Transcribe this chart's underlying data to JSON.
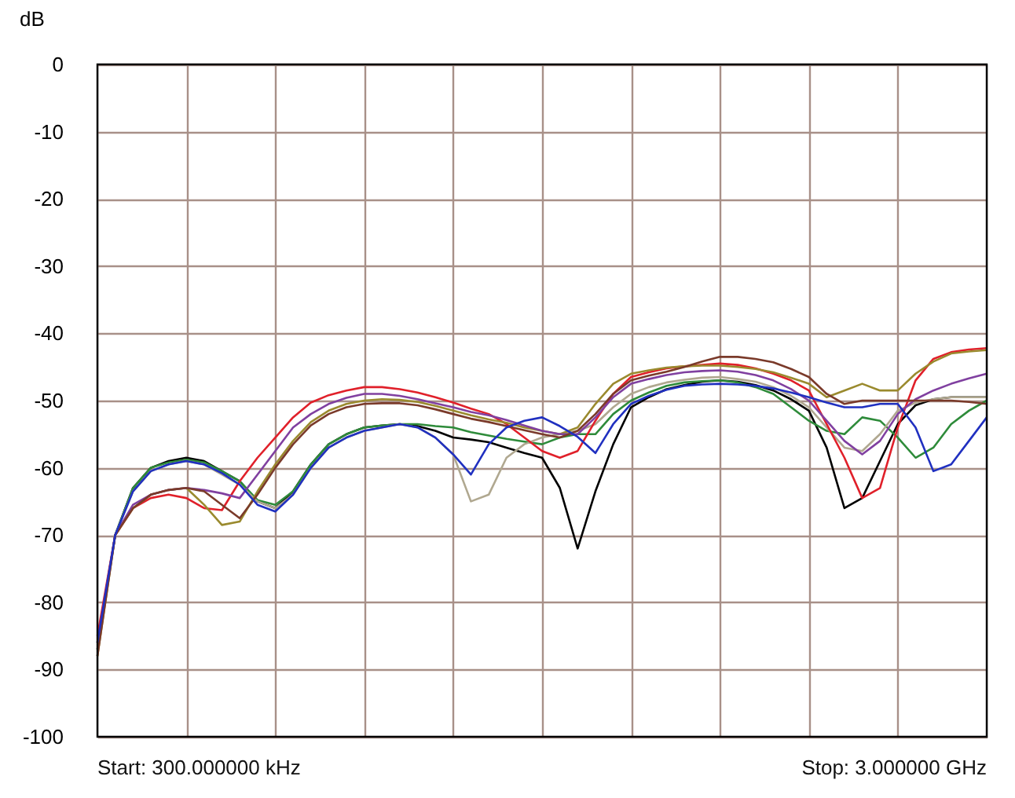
{
  "chart_data": {
    "type": "line",
    "ylabel": "dB",
    "categories": [
      null,
      null,
      null,
      null,
      null,
      null,
      null,
      null,
      null,
      null,
      null,
      null,
      null,
      null,
      null,
      null,
      null,
      null,
      null,
      null,
      null,
      null,
      null,
      null,
      null,
      null,
      null,
      null,
      null,
      null,
      null,
      null,
      null,
      null,
      null,
      null,
      null,
      null,
      null,
      null,
      null,
      null,
      null,
      null,
      null,
      null,
      null,
      null,
      null,
      null,
      null
    ],
    "series": [
      {
        "color": "#000000",
        "values": [
          -87,
          -70,
          -63,
          -60,
          -59,
          -58.5,
          -59,
          -60.5,
          -62,
          -65,
          -66,
          -63.5,
          -59.5,
          -56.5,
          -55,
          -54,
          -53.7,
          -53.5,
          -53.8,
          -54.5,
          -55.5,
          -55.8,
          -56.2,
          -57,
          -57.8,
          -58.5,
          -63,
          -72,
          -63.5,
          -56.5,
          -51,
          -49.5,
          -48.3,
          -47.7,
          -47.2,
          -47,
          -47.2,
          -47.7,
          -48.5,
          -49.8,
          -51.5,
          -57,
          -66,
          -64.5,
          -59,
          -53.5,
          -50.7,
          -49.8,
          -49.5,
          -49.5,
          -49.5
        ]
      },
      {
        "color": "#2e8b3a",
        "values": [
          -86,
          -70,
          -63,
          -60,
          -59.2,
          -58.8,
          -59.2,
          -60.5,
          -62,
          -64.8,
          -65.5,
          -63.5,
          -59.5,
          -56.5,
          -55,
          -54,
          -53.7,
          -53.5,
          -53.5,
          -53.8,
          -54,
          -54.7,
          -55.2,
          -55.7,
          -56.1,
          -56.5,
          -55.5,
          -55,
          -55,
          -52,
          -50,
          -48.8,
          -47.8,
          -47.3,
          -47.1,
          -47,
          -47.3,
          -48,
          -49,
          -51,
          -53,
          -54.5,
          -55,
          -52.5,
          -53,
          -55.5,
          -58.5,
          -57,
          -53.5,
          -51.5,
          -50
        ]
      },
      {
        "color": "#b0a890",
        "values": [
          -87,
          -70,
          -63.5,
          -60.5,
          -59.5,
          -59,
          -59.5,
          -61,
          -62.5,
          -65,
          -66,
          -64,
          -60,
          -57,
          -55.5,
          -54.5,
          -54,
          -53.5,
          -54,
          -55.5,
          -58,
          -65,
          -64,
          -58.5,
          -56.5,
          -55.5,
          -55,
          -54.5,
          -53.5,
          -51,
          -49,
          -48,
          -47.3,
          -46.9,
          -46.6,
          -46.5,
          -46.8,
          -47.2,
          -48,
          -49.3,
          -51,
          -54,
          -57,
          -57.5,
          -55,
          -51.5,
          -50.3,
          -49.8,
          -49.5,
          -49.5,
          -49.5
        ]
      },
      {
        "color": "#e0202a",
        "values": [
          -85,
          -70,
          -66,
          -64.5,
          -64,
          -64.5,
          -66,
          -66.3,
          -62,
          -58.5,
          -55.5,
          -52.5,
          -50.3,
          -49.2,
          -48.5,
          -48,
          -48,
          -48.3,
          -48.8,
          -49.5,
          -50.3,
          -51.2,
          -52,
          -53.5,
          -55.5,
          -57.5,
          -58.5,
          -57.5,
          -53,
          -49,
          -46.5,
          -45.8,
          -45.2,
          -44.9,
          -44.7,
          -44.5,
          -44.7,
          -45.2,
          -46,
          -47,
          -48.5,
          -53.5,
          -58.5,
          -64.5,
          -63,
          -54,
          -47,
          -43.8,
          -42.8,
          -42.4,
          -42.2
        ]
      },
      {
        "color": "#9a8a2e",
        "values": [
          -88,
          -70,
          -66,
          -64,
          -63.3,
          -63,
          -65.5,
          -68.5,
          -68,
          -63.5,
          -59.5,
          -56,
          -53.2,
          -51.5,
          -50.5,
          -50,
          -49.8,
          -49.9,
          -50.2,
          -50.8,
          -51.5,
          -52.2,
          -52.8,
          -53.3,
          -54,
          -54.5,
          -55,
          -54,
          -50.5,
          -47.5,
          -46,
          -45.5,
          -45.1,
          -44.9,
          -44.8,
          -44.8,
          -45,
          -45.3,
          -45.8,
          -46.6,
          -47.5,
          -49.5,
          -48.5,
          -47.5,
          -48.5,
          -48.5,
          -46,
          -44.2,
          -43,
          -42.7,
          -42.5
        ]
      },
      {
        "color": "#8040a0",
        "values": [
          -86,
          -70,
          -65.5,
          -64,
          -63.3,
          -63,
          -63.3,
          -63.8,
          -64.5,
          -61,
          -57.5,
          -54,
          -52,
          -50.5,
          -49.6,
          -49,
          -49,
          -49.3,
          -49.8,
          -50.4,
          -51,
          -51.7,
          -52.2,
          -52.9,
          -53.7,
          -54.5,
          -55,
          -55,
          -52.5,
          -49.5,
          -47.5,
          -46.8,
          -46.2,
          -45.8,
          -45.6,
          -45.5,
          -45.7,
          -46.2,
          -47,
          -48.3,
          -50,
          -53,
          -56,
          -58,
          -56,
          -52,
          -49.8,
          -48.5,
          -47.5,
          -46.7,
          -46
        ]
      },
      {
        "color": "#7a3a2a",
        "values": [
          -88,
          -70,
          -66,
          -64,
          -63.3,
          -63,
          -63.5,
          -65.5,
          -67.5,
          -64,
          -60,
          -56.5,
          -53.7,
          -52,
          -51,
          -50.5,
          -50.4,
          -50.4,
          -50.7,
          -51.3,
          -52,
          -52.7,
          -53.2,
          -53.8,
          -54.4,
          -55,
          -55.5,
          -54.5,
          -52,
          -49,
          -47,
          -46.3,
          -45.7,
          -45,
          -44.2,
          -43.5,
          -43.5,
          -43.8,
          -44.3,
          -45.3,
          -46.5,
          -49,
          -50.5,
          -50,
          -50,
          -50,
          -50,
          -50,
          -50,
          -50.2,
          -50.5
        ]
      },
      {
        "color": "#2030c0",
        "values": [
          -86,
          -70,
          -63.5,
          -60.5,
          -59.5,
          -59,
          -59.5,
          -60.8,
          -62.5,
          -65.5,
          -66.5,
          -64,
          -60,
          -57,
          -55.5,
          -54.5,
          -54,
          -53.5,
          -54,
          -55.5,
          -58,
          -61,
          -56.5,
          -54,
          -53,
          -52.5,
          -53.8,
          -55.4,
          -57.8,
          -53.5,
          -50.5,
          -49.3,
          -48.4,
          -47.8,
          -47.6,
          -47.5,
          -47.6,
          -47.8,
          -48.2,
          -48.8,
          -49.5,
          -50.3,
          -51,
          -51,
          -50.5,
          -50.5,
          -54,
          -60.5,
          -59.5,
          -56,
          -52.5
        ]
      }
    ],
    "ylim": [
      -100,
      0
    ],
    "yticks": [
      0,
      -10,
      -20,
      -30,
      -40,
      -50,
      -60,
      -70,
      -80,
      -90,
      -100
    ],
    "tick_labels": "y",
    "grid": true,
    "legend": false,
    "line_style": "solid",
    "marker": "none",
    "annotations": [
      "Start: 300.000000 kHz",
      "Stop: 3.000000 GHz"
    ]
  }
}
